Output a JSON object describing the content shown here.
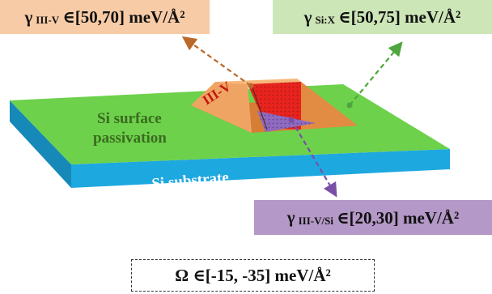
{
  "labels": {
    "gamma_iiiv": {
      "gamma": "γ",
      "sub": "III-V",
      "range": "∈[50,70] meV/Å²"
    },
    "gamma_six": {
      "gamma": "γ",
      "sub": "Si:X",
      "range": "∈[50,75] meV/Å²"
    },
    "gamma_iiivsi": {
      "gamma": "γ",
      "sub": "III-V/Si",
      "range": "∈[20,30] meV/Å²"
    },
    "omega": {
      "text": "Ω ∈[-15, -35] meV/Å²"
    }
  },
  "diagram": {
    "surface_label_line1": "Si surface",
    "surface_label_line2": "passivation",
    "substrate_label": "Si substrate",
    "island_label": "III-V"
  },
  "colors": {
    "surface_green": "#6dd14b",
    "substrate_blue": "#1ea8e0",
    "island_orange": "#f19a52",
    "facet_red": "#e8231e",
    "interface_purple": "#8f6ac0",
    "arrow_orange": "#b9692a",
    "arrow_green": "#4fa63c",
    "arrow_purple": "#7a4fa8"
  }
}
